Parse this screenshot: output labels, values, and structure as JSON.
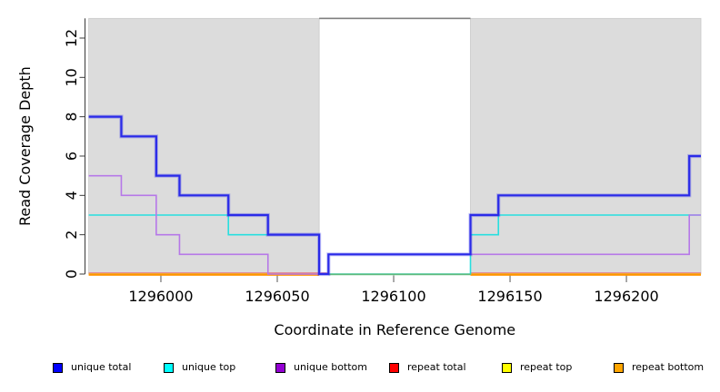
{
  "chart_data": {
    "type": "line",
    "subtype": "step",
    "title": "",
    "xlabel": "Coordinate in Reference Genome",
    "ylabel": "Read Coverage Depth",
    "xlim": [
      1295969,
      1296232
    ],
    "ylim": [
      0,
      13
    ],
    "x_ticks": [
      1296000,
      1296050,
      1296100,
      1296150,
      1296200
    ],
    "y_ticks": [
      0,
      2,
      4,
      6,
      8,
      10,
      12
    ],
    "grid": false,
    "legend_position": "bottom",
    "background_color": "#ffffff",
    "shaded_region_color": "#dcdcdc",
    "shaded_regions": [
      {
        "name": "left-shaded-region",
        "x0": 1295969,
        "x1": 1296068
      },
      {
        "name": "right-shaded-region",
        "x0": 1296133,
        "x1": 1296232
      }
    ],
    "gap_cap_line": {
      "x0": 1296068,
      "x1": 1296133,
      "y": 13,
      "color": "#808080"
    },
    "series": [
      {
        "name": "unique total",
        "color": "#0000ff",
        "line_color": "#2a2ae8",
        "steps": [
          [
            1295969,
            8
          ],
          [
            1295983,
            7
          ],
          [
            1295998,
            5
          ],
          [
            1296008,
            4
          ],
          [
            1296029,
            3
          ],
          [
            1296046,
            2
          ],
          [
            1296068,
            0
          ],
          [
            1296072,
            1
          ],
          [
            1296133,
            3
          ],
          [
            1296145,
            4
          ],
          [
            1296227,
            6
          ],
          [
            1296232,
            6
          ]
        ]
      },
      {
        "name": "unique top",
        "color": "#00ffff",
        "line_color": "#27dfdf",
        "steps": [
          [
            1295969,
            3
          ],
          [
            1296029,
            2
          ],
          [
            1296068,
            0
          ],
          [
            1296133,
            2
          ],
          [
            1296145,
            3
          ],
          [
            1296232,
            3
          ]
        ]
      },
      {
        "name": "unique bottom",
        "color": "#9400d3",
        "line_color": "#b678e8",
        "steps": [
          [
            1295969,
            5
          ],
          [
            1295983,
            4
          ],
          [
            1295998,
            2
          ],
          [
            1296008,
            1
          ],
          [
            1296046,
            0
          ],
          [
            1296072,
            1
          ],
          [
            1296227,
            3
          ],
          [
            1296232,
            3
          ]
        ]
      },
      {
        "name": "repeat total",
        "color": "#ff0000",
        "line_color": "#e84058",
        "steps": [
          [
            1295969,
            0
          ],
          [
            1296232,
            0
          ]
        ]
      },
      {
        "name": "repeat top",
        "color": "#ffff00",
        "line_color": "#f0e030",
        "steps": [
          [
            1295969,
            0
          ],
          [
            1296232,
            0
          ]
        ]
      },
      {
        "name": "repeat bottom",
        "color": "#ffa500",
        "line_color": "#ff9500",
        "steps": [
          [
            1295969,
            0
          ],
          [
            1296232,
            0
          ]
        ]
      }
    ],
    "extra_lines": [
      {
        "name": "zero-line-green-overlap",
        "color": "#5cb97a",
        "x0": 1296072,
        "x1": 1296133,
        "y": 0
      }
    ]
  },
  "legend": {
    "items": [
      {
        "label": "unique total",
        "color": "#0000ff"
      },
      {
        "label": "unique top",
        "color": "#00ffff"
      },
      {
        "label": "unique bottom",
        "color": "#9400d3"
      },
      {
        "label": "repeat total",
        "color": "#ff0000"
      },
      {
        "label": "repeat top",
        "color": "#ffff00"
      },
      {
        "label": "repeat bottom",
        "color": "#ffa500"
      }
    ]
  }
}
